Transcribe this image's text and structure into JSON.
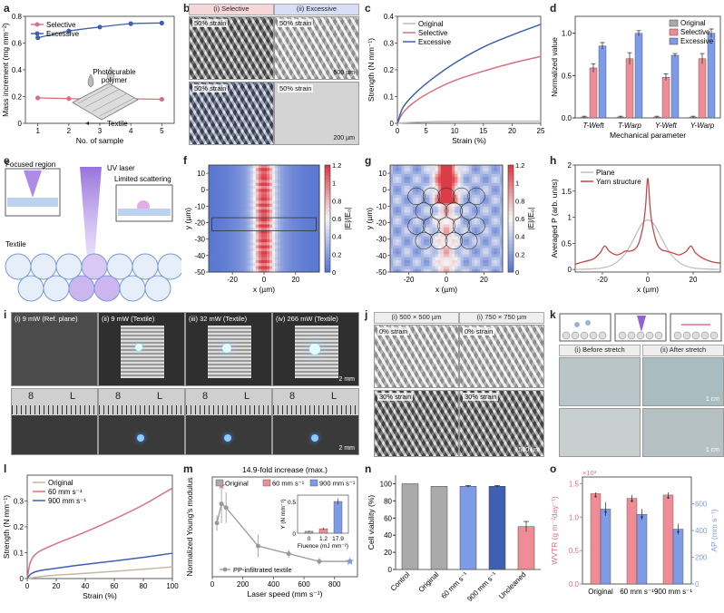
{
  "colors": {
    "gray": "#999999",
    "red": "#d97080",
    "blue": "#3f5fb0",
    "lightred": "#f08c96",
    "lightblue": "#7d9be6"
  },
  "letters": {
    "a": "a",
    "b": "b",
    "c": "c",
    "d": "d",
    "e": "e",
    "f": "f",
    "g": "g",
    "h": "h",
    "i": "i",
    "j": "j",
    "k": "k",
    "l": "l",
    "m": "m",
    "n": "n",
    "o": "o"
  },
  "panel_a": {
    "inset_label": "Photocurable\npolymer",
    "inset_label_1": "Photocurable",
    "inset_label_2": "polymer",
    "textile_label": "Textile"
  },
  "panel_b": {
    "header_i": "(i) Selective",
    "header_ii": "(ii) Excessive",
    "caps": [
      "50% strain",
      "50% strain",
      "50% strain",
      "50% strain"
    ],
    "scales": [
      "500 µm",
      "200 µm"
    ]
  },
  "panel_e": {
    "focused": "Focused region",
    "uv": "UV laser",
    "limited": "Limited scattering",
    "textile": "Textile"
  },
  "panel_i": {
    "captions": [
      "(i) 9 mW (Ref. plane)",
      "(ii) 9 mW (Textile)",
      "(iii) 32 mW (Textile)",
      "(iv) 266 mW (Textile)"
    ],
    "scale_top": "2 mm",
    "scale_bottom": "2 mm",
    "ruler_digits": [
      "8",
      "L",
      "8",
      "L",
      "8",
      "L",
      "8",
      "L"
    ]
  },
  "panel_j": {
    "header_i": "(i) 500 × 500 µm",
    "header_ii": "(i) 750 × 750 µm",
    "caps": [
      "0% strain",
      "0% strain",
      "30% strain",
      "30% strain"
    ],
    "scale": "500 µm"
  },
  "panel_k": {
    "before": "(i) Before stretch",
    "after": "(ii) After stretch",
    "scale": "1 cm"
  },
  "chart_data": [
    {
      "id": "a",
      "type": "line",
      "xlabel": "No. of sample",
      "ylabel": "Mass increment (mg mm⁻²)",
      "xlim": [
        0.6,
        5.4
      ],
      "ylim": [
        0,
        0.8
      ],
      "xticks": [
        1,
        2,
        3,
        4,
        5
      ],
      "yticks": [
        0,
        0.2,
        0.4,
        0.6,
        0.8
      ],
      "x": [
        1,
        2,
        3,
        4,
        5
      ],
      "series": [
        {
          "name": "Selective",
          "values": [
            0.19,
            0.185,
            0.18,
            0.183,
            0.18
          ],
          "color": "#d97080"
        },
        {
          "name": "Excessive",
          "values": [
            0.64,
            0.69,
            0.72,
            0.745,
            0.75
          ],
          "color": "#3f5fb0"
        }
      ],
      "legend": "top-left"
    },
    {
      "id": "c",
      "type": "line",
      "xlabel": "Strain (%)",
      "ylabel": "Strength (N mm⁻¹)",
      "xlim": [
        0,
        25
      ],
      "ylim": [
        0,
        0.4
      ],
      "xticks": [
        0,
        5,
        10,
        15,
        20,
        25
      ],
      "yticks": [
        0,
        0.1,
        0.2,
        0.3,
        0.4
      ],
      "series": [
        {
          "name": "Original",
          "x": [
            0,
            1,
            3,
            6,
            10,
            15,
            20,
            25
          ],
          "values": [
            0,
            0.002,
            0.004,
            0.006,
            0.007,
            0.008,
            0.008,
            0.008
          ],
          "color": "#bbbbbb"
        },
        {
          "name": "Selective",
          "x": [
            0,
            1,
            3,
            6,
            10,
            15,
            20,
            25
          ],
          "values": [
            0,
            0.04,
            0.08,
            0.12,
            0.16,
            0.195,
            0.225,
            0.25
          ],
          "color": "#d97080"
        },
        {
          "name": "Excessive",
          "x": [
            0,
            1,
            3,
            6,
            10,
            15,
            20,
            25
          ],
          "values": [
            0,
            0.06,
            0.11,
            0.165,
            0.225,
            0.285,
            0.33,
            0.37
          ],
          "color": "#3f5fb0"
        }
      ],
      "legend": "top-left"
    },
    {
      "id": "d",
      "type": "bar",
      "xlabel": "Mechanical parameter",
      "ylabel": "Normalized value",
      "ylim": [
        0,
        1.2
      ],
      "yticks": [
        0,
        0.5,
        1.0
      ],
      "categories": [
        "T-Weft",
        "T-Warp",
        "Y-Weft",
        "Y-Warp"
      ],
      "series": [
        {
          "name": "Original",
          "values": [
            0.01,
            0.01,
            0.01,
            0.01
          ],
          "errors": [
            0.01,
            0.01,
            0.01,
            0.01
          ],
          "color": "#aaaaaa"
        },
        {
          "name": "Selective",
          "values": [
            0.59,
            0.7,
            0.48,
            0.7
          ],
          "errors": [
            0.05,
            0.07,
            0.04,
            0.06
          ],
          "color": "#f08c96"
        },
        {
          "name": "Excessive",
          "values": [
            0.85,
            1.0,
            0.74,
            1.0
          ],
          "errors": [
            0.04,
            0.03,
            0.02,
            0.05
          ],
          "color": "#7d9be6"
        }
      ],
      "legend": "top-right"
    },
    {
      "id": "f",
      "type": "heatmap",
      "xlabel": "x (µm)",
      "ylabel": "y (µm)",
      "colorbar_label": "|E|/|E₀|",
      "xlim": [
        -35,
        35
      ],
      "ylim": [
        -50,
        15
      ],
      "xticks": [
        -20,
        0,
        20
      ],
      "yticks": [
        10,
        0,
        -10,
        -20,
        -30,
        -40,
        -50
      ],
      "clim": [
        0,
        1.2
      ],
      "cticks": [
        0,
        0.2,
        0.4,
        0.6,
        0.8,
        1.0,
        1.2
      ]
    },
    {
      "id": "g",
      "type": "heatmap",
      "xlabel": "x (µm)",
      "ylabel": "y (µm)",
      "colorbar_label": "|E|/|E₀|",
      "xlim": [
        -30,
        30
      ],
      "ylim": [
        -50,
        15
      ],
      "xticks": [
        -20,
        0,
        20
      ],
      "yticks": [
        10,
        0,
        -10,
        -20,
        -30,
        -40,
        -50
      ],
      "clim": [
        0,
        1.2
      ],
      "cticks": [
        0,
        0.2,
        0.4,
        0.6,
        0.8,
        1.0,
        1.2
      ]
    },
    {
      "id": "h",
      "type": "line",
      "xlabel": "x (µm)",
      "ylabel": "Averaged P (arb. units)",
      "xlim": [
        -32,
        32
      ],
      "ylim": [
        -0.05,
        2.0
      ],
      "xticks": [
        -20,
        0,
        20
      ],
      "yticks": [
        0,
        0.5,
        1.0,
        1.5,
        2.0
      ],
      "series": [
        {
          "name": "Plane",
          "x": [
            -32,
            -25,
            -20,
            -15,
            -10,
            -6,
            -3,
            0,
            3,
            6,
            10,
            15,
            20,
            25,
            32
          ],
          "values": [
            0.0,
            0.01,
            0.03,
            0.1,
            0.3,
            0.6,
            0.85,
            0.95,
            0.85,
            0.6,
            0.3,
            0.1,
            0.03,
            0.01,
            0.0
          ],
          "color": "#c0c0c0"
        },
        {
          "name": "Yarn structure",
          "x": [
            -32,
            -28,
            -24,
            -21,
            -19,
            -17,
            -14,
            -12,
            -10,
            -8,
            -6,
            -4,
            -2,
            -1,
            0,
            1,
            2,
            4,
            6,
            8,
            10,
            12,
            14,
            17,
            19,
            21,
            24,
            28,
            32
          ],
          "values": [
            0.1,
            0.15,
            0.2,
            0.32,
            0.45,
            0.35,
            0.28,
            0.3,
            0.35,
            0.35,
            0.38,
            0.5,
            0.85,
            1.2,
            1.75,
            1.2,
            0.85,
            0.5,
            0.38,
            0.35,
            0.33,
            0.3,
            0.28,
            0.35,
            0.45,
            0.32,
            0.22,
            0.15,
            0.12
          ],
          "color": "#c24848"
        }
      ],
      "legend": "top-left"
    },
    {
      "id": "l",
      "type": "line",
      "xlabel": "Strain (%)",
      "ylabel": "Strength (N mm⁻¹)",
      "xlim": [
        0,
        100
      ],
      "ylim": [
        0,
        0.4
      ],
      "xticks": [
        0,
        20,
        40,
        60,
        80,
        100
      ],
      "yticks": [
        0,
        0.1,
        0.2,
        0.3
      ],
      "series": [
        {
          "name": "Original",
          "x": [
            0,
            10,
            20,
            40,
            60,
            80,
            100
          ],
          "values": [
            0,
            0.008,
            0.013,
            0.02,
            0.028,
            0.036,
            0.045
          ],
          "color": "#c8b6a0"
        },
        {
          "name": "60 mm s⁻¹",
          "x": [
            0,
            2,
            5,
            10,
            20,
            40,
            60,
            80,
            100
          ],
          "values": [
            0,
            0.06,
            0.09,
            0.11,
            0.135,
            0.18,
            0.23,
            0.285,
            0.35
          ],
          "color": "#d97080"
        },
        {
          "name": "900 mm s⁻¹",
          "x": [
            0,
            2,
            5,
            10,
            20,
            40,
            60,
            80,
            100
          ],
          "values": [
            0,
            0.015,
            0.025,
            0.032,
            0.04,
            0.055,
            0.068,
            0.082,
            0.098
          ],
          "color": "#3f5fb0"
        }
      ],
      "legend": "top-left"
    },
    {
      "id": "m",
      "type": "scatter",
      "title": "14.9-fold increase (max.)",
      "xlabel": "Laser speed (mm s⁻¹)",
      "ylabel": "Normalized Young's modulus",
      "xlim": [
        0,
        950
      ],
      "ylim": [
        0,
        1.3
      ],
      "xticks": [
        0,
        200,
        400,
        600,
        800
      ],
      "series": [
        {
          "name": "PP-infiltrated textile",
          "x": [
            30,
            60,
            90,
            300,
            500,
            700,
            900
          ],
          "values": [
            0.7,
            0.95,
            0.9,
            0.4,
            0.3,
            0.2,
            0.2
          ],
          "errors": [
            0.1,
            0.25,
            0.2,
            0.15,
            0.05,
            0.05,
            0.03
          ],
          "color": "#999999"
        }
      ],
      "legend_items": [
        "Original",
        "60 mm s⁻¹",
        "900 mm s⁻¹"
      ],
      "inset": {
        "xlabel": "Fluence (mJ mm⁻²)",
        "ylabel": "Y (N mm⁻¹)",
        "categories": [
          "0",
          "1.2",
          "17.9"
        ],
        "values": [
          0.03,
          0.07,
          0.5
        ],
        "errors": [
          0.01,
          0.02,
          0.05
        ],
        "ylim": [
          0,
          0.6
        ],
        "yticks": [
          0,
          0.5
        ]
      }
    },
    {
      "id": "n",
      "type": "bar",
      "ylabel": "Cell viability (%)",
      "ylim": [
        0,
        110
      ],
      "yticks": [
        0,
        20,
        40,
        60,
        80,
        100
      ],
      "categories": [
        "Control",
        "Original",
        "60 mm s⁻¹",
        "900 mm s⁻¹",
        "Uncleaned"
      ],
      "values": [
        100,
        97,
        97,
        97,
        50
      ],
      "errors": [
        0,
        0,
        1,
        1,
        6
      ],
      "colors": [
        "#aaaaaa",
        "#aaaaaa",
        "#7d9be6",
        "#3f5fb0",
        "#f08c96"
      ]
    },
    {
      "id": "o",
      "type": "bar",
      "ylabel": "WVTR (g m⁻²day⁻¹)",
      "ylabel2": "AP (mm s⁻¹)",
      "y_multiplier": "×10³",
      "ylim": [
        0,
        1.6
      ],
      "yticks": [
        0,
        0.5,
        1.0,
        1.5
      ],
      "y2lim": [
        0,
        800
      ],
      "y2ticks": [
        0,
        200,
        400,
        600
      ],
      "categories": [
        "Original",
        "60 mm s⁻¹",
        "900 mm s⁻¹"
      ],
      "series": [
        {
          "name": "WVTR",
          "values": [
            1.35,
            1.28,
            1.33
          ],
          "errors": [
            0.02,
            0.05,
            0.04
          ],
          "color": "#f08c96"
        },
        {
          "name": "AP",
          "values": [
            560,
            520,
            410
          ],
          "errors": [
            50,
            40,
            40
          ],
          "color": "#7d9be6"
        }
      ]
    }
  ]
}
